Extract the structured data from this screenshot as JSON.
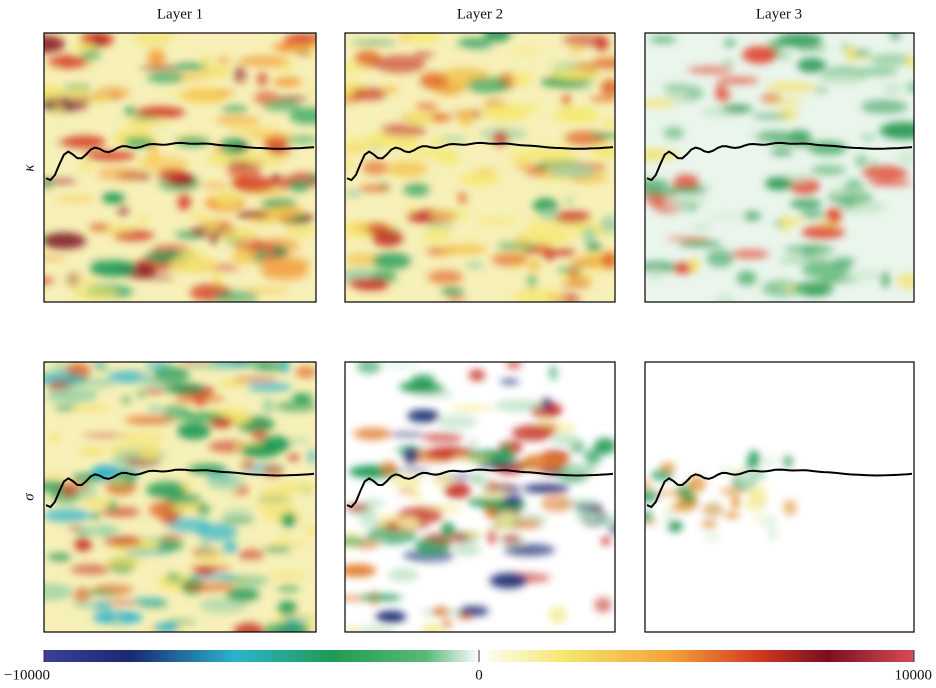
{
  "figure": {
    "columns": [
      "Layer 1",
      "Layer 2",
      "Layer 3"
    ],
    "rows": [
      "κ",
      "σ"
    ],
    "colorbar": {
      "lim": [
        -10000,
        10000
      ],
      "ticks": [
        {
          "value": -10000,
          "label": "−10000"
        },
        0,
        10000
      ]
    }
  }
}
